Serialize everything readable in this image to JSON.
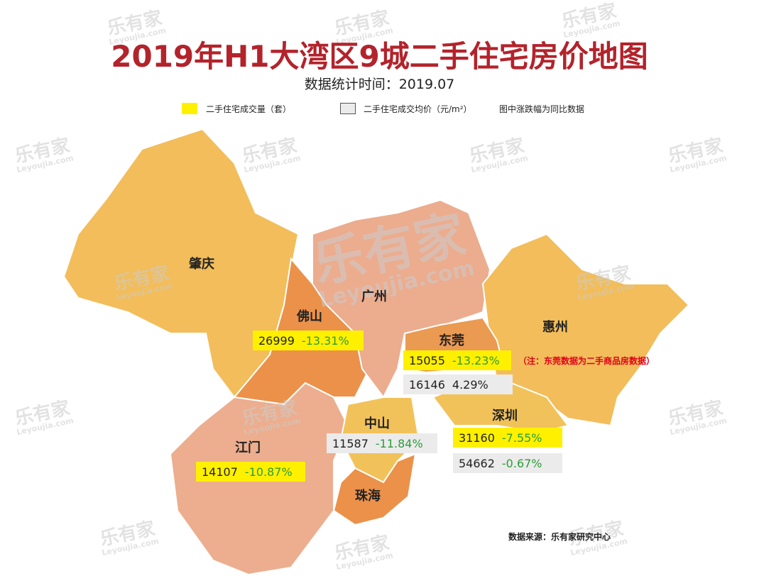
{
  "header": {
    "title": "2019年H1大湾区9城二手住宅房价地图",
    "subtitle": "数据统计时间：2019.07"
  },
  "legend": {
    "items": [
      {
        "label": "二手住宅成交量（套）"
      },
      {
        "label": "二手住宅成交均价（元/m²）"
      }
    ],
    "note": "图中涨跌幅为同比数据"
  },
  "cities": [
    {
      "name": "肇庆"
    },
    {
      "name": "佛山",
      "volume": {
        "value": "26999",
        "change": "-13.31%"
      }
    },
    {
      "name": "广州"
    },
    {
      "name": "东莞",
      "volume": {
        "value": "15055",
        "change": "-13.23%"
      },
      "price": {
        "value": "16146",
        "change": "4.29%"
      }
    },
    {
      "name": "惠州"
    },
    {
      "name": "深圳",
      "volume": {
        "value": "31160",
        "change": "-7.55%"
      },
      "price": {
        "value": "54662",
        "change": "-0.67%"
      }
    },
    {
      "name": "中山",
      "price": {
        "value": "11587",
        "change": "-11.84%"
      }
    },
    {
      "name": "江门",
      "volume": {
        "value": "14107",
        "change": "-10.87%"
      }
    },
    {
      "name": "珠海"
    }
  ],
  "annotation": "（注：东莞数据为二手商品房数据）",
  "source": "数据来源：乐有家研究中心",
  "watermark": {
    "brand": "乐有家",
    "site": "Leyoujia.com"
  }
}
